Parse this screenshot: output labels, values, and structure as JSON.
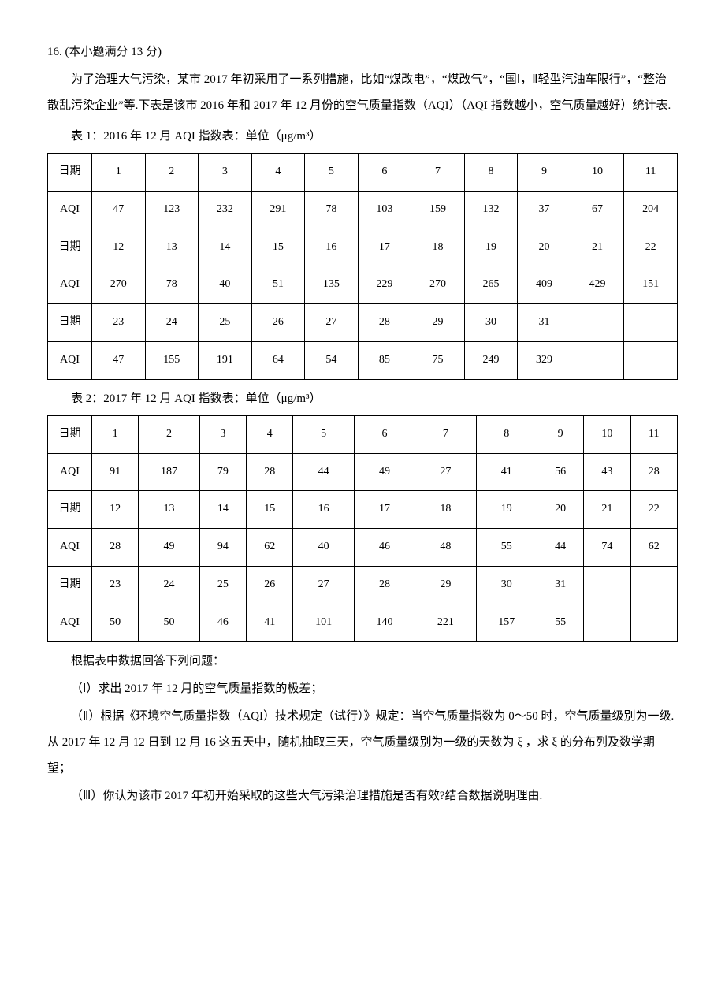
{
  "problem": {
    "number": "16. (本小题满分 13 分)",
    "intro": "为了治理大气污染，某市 2017 年初采用了一系列措施，比如“煤改电”，“煤改气”，“国Ⅰ，Ⅱ轻型汽油车限行”，“整治散乱污染企业”等.下表是该市 2016 年和 2017 年 12 月份的空气质量指数（AQI）（AQI 指数越小，空气质量越好）统计表."
  },
  "table1": {
    "title": "表 1：2016 年 12 月 AQI 指数表：单位（μg/m³）",
    "row_label_date": "日期",
    "row_label_aqi": "AQI",
    "dates_r1": [
      "1",
      "2",
      "3",
      "4",
      "5",
      "6",
      "7",
      "8",
      "9",
      "10",
      "11"
    ],
    "aqi_r1": [
      "47",
      "123",
      "232",
      "291",
      "78",
      "103",
      "159",
      "132",
      "37",
      "67",
      "204"
    ],
    "dates_r2": [
      "12",
      "13",
      "14",
      "15",
      "16",
      "17",
      "18",
      "19",
      "20",
      "21",
      "22"
    ],
    "aqi_r2": [
      "270",
      "78",
      "40",
      "51",
      "135",
      "229",
      "270",
      "265",
      "409",
      "429",
      "151"
    ],
    "dates_r3": [
      "23",
      "24",
      "25",
      "26",
      "27",
      "28",
      "29",
      "30",
      "31",
      "",
      ""
    ],
    "aqi_r3": [
      "47",
      "155",
      "191",
      "64",
      "54",
      "85",
      "75",
      "249",
      "329",
      "",
      ""
    ]
  },
  "table2": {
    "title": "表 2：2017 年 12 月 AQI 指数表：单位（μg/m³）",
    "row_label_date": "日期",
    "row_label_aqi": "AQI",
    "dates_r1": [
      "1",
      "2",
      "3",
      "4",
      "5",
      "6",
      "7",
      "8",
      "9",
      "10",
      "11"
    ],
    "aqi_r1": [
      "91",
      "187",
      "79",
      "28",
      "44",
      "49",
      "27",
      "41",
      "56",
      "43",
      "28"
    ],
    "dates_r2": [
      "12",
      "13",
      "14",
      "15",
      "16",
      "17",
      "18",
      "19",
      "20",
      "21",
      "22"
    ],
    "aqi_r2": [
      "28",
      "49",
      "94",
      "62",
      "40",
      "46",
      "48",
      "55",
      "44",
      "74",
      "62"
    ],
    "dates_r3": [
      "23",
      "24",
      "25",
      "26",
      "27",
      "28",
      "29",
      "30",
      "31",
      "",
      ""
    ],
    "aqi_r3": [
      "50",
      "50",
      "46",
      "41",
      "101",
      "140",
      "221",
      "157",
      "55",
      "",
      ""
    ]
  },
  "questions": {
    "prompt": "根据表中数据回答下列问题：",
    "q1": "（Ⅰ）求出 2017 年 12 月的空气质量指数的极差；",
    "q2": "（Ⅱ）根据《环境空气质量指数（AQI）技术规定（试行）》规定：当空气质量指数为 0～50 时，空气质量级别为一级.从 2017 年 12 月 12 日到 12 月 16 这五天中，随机抽取三天，空气质量级别为一级的天数为 ξ ，求 ξ 的分布列及数学期望；",
    "q3": "（Ⅲ）你认为该市 2017 年初开始采取的这些大气污染治理措施是否有效?结合数据说明理由."
  },
  "style": {
    "background_color": "#ffffff",
    "text_color": "#000000",
    "font_family": "SimSun, 宋体, serif",
    "body_fontsize": 15,
    "table_fontsize": 14,
    "line_height": 2.2,
    "border_color": "#000000"
  }
}
